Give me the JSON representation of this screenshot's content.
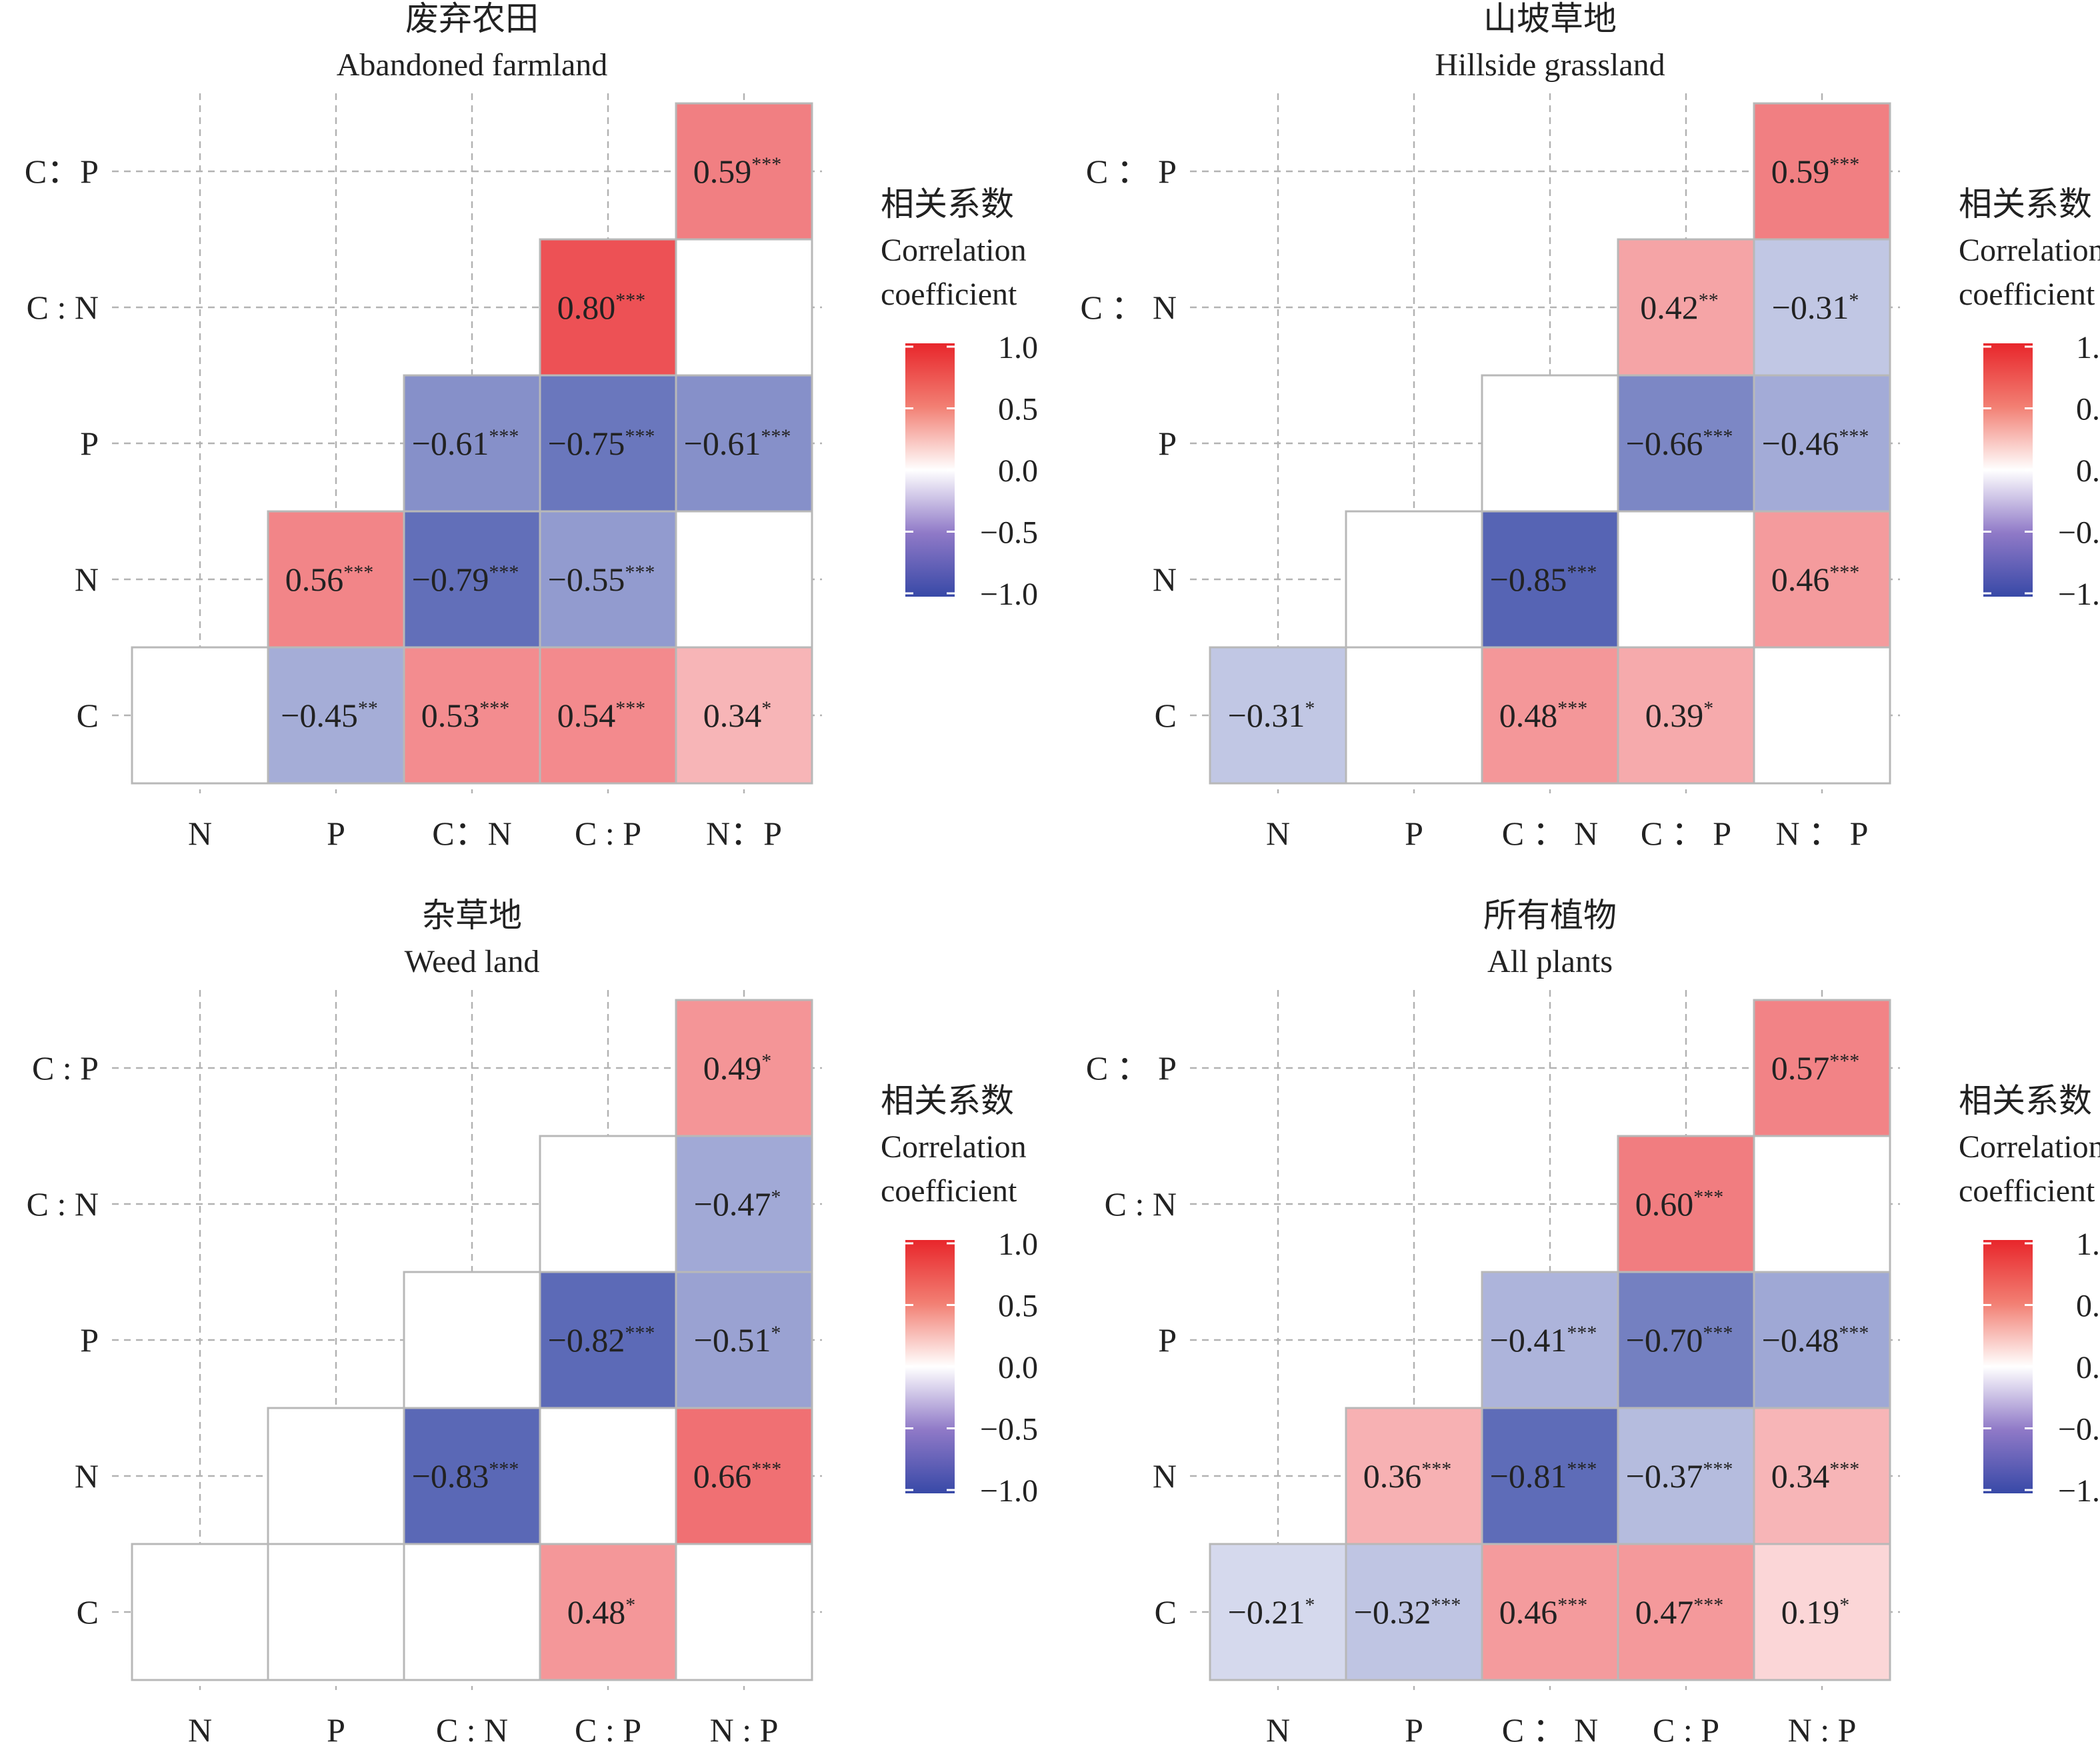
{
  "axis_labels": [
    "C",
    "N",
    "P",
    "C : N",
    "C : P",
    "N : P"
  ],
  "legend": {
    "title_cn": "相关系数",
    "title_en_line1": "Correlation",
    "title_en_line2": "coefficient",
    "ticks": [
      "1.0",
      "0.5",
      "0.0",
      "−0.5",
      "−1.0"
    ],
    "colors": {
      "high": "#e8262b",
      "mid": "#ffffff",
      "low": "#3849a7"
    }
  },
  "chart_data": [
    {
      "type": "heatmap",
      "title_cn": "废弃农田",
      "title_en": "Abandoned farmland",
      "x_labels": [
        "N",
        "P",
        "C：N",
        "C : P",
        "N：P"
      ],
      "y_labels": [
        "C：P",
        "C : N",
        "P",
        "N",
        "C"
      ],
      "cells": [
        {
          "row": "C",
          "col": "N",
          "r": null,
          "sig": ""
        },
        {
          "row": "C",
          "col": "P",
          "r": -0.45,
          "sig": "**"
        },
        {
          "row": "C",
          "col": "C:N",
          "r": 0.53,
          "sig": "***"
        },
        {
          "row": "C",
          "col": "C:P",
          "r": 0.54,
          "sig": "***"
        },
        {
          "row": "C",
          "col": "N:P",
          "r": 0.34,
          "sig": "*"
        },
        {
          "row": "N",
          "col": "P",
          "r": 0.56,
          "sig": "***"
        },
        {
          "row": "N",
          "col": "C:N",
          "r": -0.79,
          "sig": "***"
        },
        {
          "row": "N",
          "col": "C:P",
          "r": -0.55,
          "sig": "***"
        },
        {
          "row": "N",
          "col": "N:P",
          "r": null,
          "sig": ""
        },
        {
          "row": "P",
          "col": "C:N",
          "r": -0.61,
          "sig": "***"
        },
        {
          "row": "P",
          "col": "C:P",
          "r": -0.75,
          "sig": "***"
        },
        {
          "row": "P",
          "col": "N:P",
          "r": -0.61,
          "sig": "***"
        },
        {
          "row": "C:N",
          "col": "C:P",
          "r": 0.8,
          "sig": "***"
        },
        {
          "row": "C:N",
          "col": "N:P",
          "r": null,
          "sig": ""
        },
        {
          "row": "C:P",
          "col": "N:P",
          "r": 0.59,
          "sig": "***"
        }
      ]
    },
    {
      "type": "heatmap",
      "title_cn": "山坡草地",
      "title_en": "Hillside grassland",
      "x_labels": [
        "N",
        "P",
        "C ： N",
        "C ： P",
        "N ： P"
      ],
      "y_labels": [
        "C ： P",
        "C ： N",
        "P",
        "N",
        "C"
      ],
      "cells": [
        {
          "row": "C",
          "col": "N",
          "r": -0.31,
          "sig": "*"
        },
        {
          "row": "C",
          "col": "P",
          "r": null,
          "sig": ""
        },
        {
          "row": "C",
          "col": "C:N",
          "r": 0.48,
          "sig": "***"
        },
        {
          "row": "C",
          "col": "C:P",
          "r": 0.39,
          "sig": "*"
        },
        {
          "row": "C",
          "col": "N:P",
          "r": null,
          "sig": ""
        },
        {
          "row": "N",
          "col": "P",
          "r": null,
          "sig": ""
        },
        {
          "row": "N",
          "col": "C:N",
          "r": -0.85,
          "sig": "***"
        },
        {
          "row": "N",
          "col": "C:P",
          "r": null,
          "sig": ""
        },
        {
          "row": "N",
          "col": "N:P",
          "r": 0.46,
          "sig": "***"
        },
        {
          "row": "P",
          "col": "C:N",
          "r": null,
          "sig": ""
        },
        {
          "row": "P",
          "col": "C:P",
          "r": -0.66,
          "sig": "***"
        },
        {
          "row": "P",
          "col": "N:P",
          "r": -0.46,
          "sig": "***"
        },
        {
          "row": "C:N",
          "col": "C:P",
          "r": 0.42,
          "sig": "**"
        },
        {
          "row": "C:N",
          "col": "N:P",
          "r": -0.31,
          "sig": "*"
        },
        {
          "row": "C:P",
          "col": "N:P",
          "r": 0.59,
          "sig": "***"
        }
      ]
    },
    {
      "type": "heatmap",
      "title_cn": "杂草地",
      "title_en": "Weed land",
      "x_labels": [
        "N",
        "P",
        "C : N",
        "C : P",
        "N : P"
      ],
      "y_labels": [
        "C : P",
        "C : N",
        "P",
        "N",
        "C"
      ],
      "cells": [
        {
          "row": "C",
          "col": "N",
          "r": null,
          "sig": ""
        },
        {
          "row": "C",
          "col": "P",
          "r": null,
          "sig": ""
        },
        {
          "row": "C",
          "col": "C:N",
          "r": null,
          "sig": ""
        },
        {
          "row": "C",
          "col": "C:P",
          "r": 0.48,
          "sig": "*"
        },
        {
          "row": "C",
          "col": "N:P",
          "r": null,
          "sig": ""
        },
        {
          "row": "N",
          "col": "P",
          "r": null,
          "sig": ""
        },
        {
          "row": "N",
          "col": "C:N",
          "r": -0.83,
          "sig": "***"
        },
        {
          "row": "N",
          "col": "C:P",
          "r": null,
          "sig": ""
        },
        {
          "row": "N",
          "col": "N:P",
          "r": 0.66,
          "sig": "***"
        },
        {
          "row": "P",
          "col": "C:N",
          "r": null,
          "sig": ""
        },
        {
          "row": "P",
          "col": "C:P",
          "r": -0.82,
          "sig": "***"
        },
        {
          "row": "P",
          "col": "N:P",
          "r": -0.51,
          "sig": "*"
        },
        {
          "row": "C:N",
          "col": "C:P",
          "r": null,
          "sig": ""
        },
        {
          "row": "C:N",
          "col": "N:P",
          "r": -0.47,
          "sig": "*"
        },
        {
          "row": "C:P",
          "col": "N:P",
          "r": 0.49,
          "sig": "*"
        }
      ]
    },
    {
      "type": "heatmap",
      "title_cn": "所有植物",
      "title_en": "All plants",
      "x_labels": [
        "N",
        "P",
        "C ： N",
        "C : P",
        "N : P"
      ],
      "y_labels": [
        "C ： P",
        "C : N",
        "P",
        "N",
        "C"
      ],
      "cells": [
        {
          "row": "C",
          "col": "N",
          "r": -0.21,
          "sig": "*"
        },
        {
          "row": "C",
          "col": "P",
          "r": -0.32,
          "sig": "***"
        },
        {
          "row": "C",
          "col": "C:N",
          "r": 0.46,
          "sig": "***"
        },
        {
          "row": "C",
          "col": "C:P",
          "r": 0.47,
          "sig": "***"
        },
        {
          "row": "C",
          "col": "N:P",
          "r": 0.19,
          "sig": "*"
        },
        {
          "row": "N",
          "col": "P",
          "r": 0.36,
          "sig": "***"
        },
        {
          "row": "N",
          "col": "C:N",
          "r": -0.81,
          "sig": "***"
        },
        {
          "row": "N",
          "col": "C:P",
          "r": -0.37,
          "sig": "***"
        },
        {
          "row": "N",
          "col": "N:P",
          "r": 0.34,
          "sig": "***"
        },
        {
          "row": "P",
          "col": "C:N",
          "r": -0.41,
          "sig": "***"
        },
        {
          "row": "P",
          "col": "C:P",
          "r": -0.7,
          "sig": "***"
        },
        {
          "row": "P",
          "col": "N:P",
          "r": -0.48,
          "sig": "***"
        },
        {
          "row": "C:N",
          "col": "C:P",
          "r": 0.6,
          "sig": "***"
        },
        {
          "row": "C:N",
          "col": "N:P",
          "r": null,
          "sig": ""
        },
        {
          "row": "C:P",
          "col": "N:P",
          "r": 0.57,
          "sig": "***"
        }
      ]
    }
  ]
}
